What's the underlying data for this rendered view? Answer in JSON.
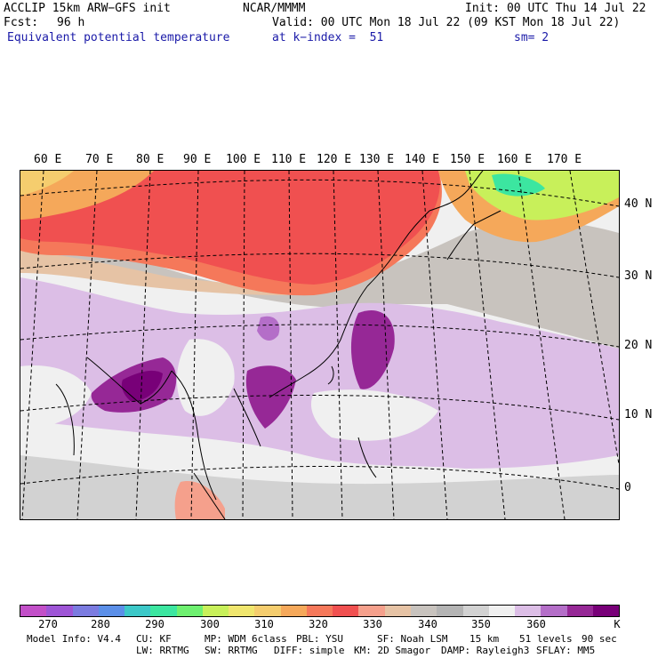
{
  "header": {
    "model": "ACCLIP 15km ARW−GFS init",
    "org": "NCAR/MMMM",
    "init": "Init: 00 UTC Thu 14 Jul 22",
    "fcst_label": "Fcst:",
    "fcst_value": "96 h",
    "valid": "Valid: 00 UTC Mon 18 Jul 22 (09 KST Mon 18 Jul 22)",
    "field": "Equivalent potential temperature",
    "level": "at k−index =  51",
    "smooth": "sm= 2"
  },
  "map": {
    "lon_labels": [
      "60 E",
      "70 E",
      "80 E",
      "90 E",
      "100 E",
      "110 E",
      "120 E",
      "130 E",
      "140 E",
      "150 E",
      "160 E",
      "170 E"
    ],
    "lat_labels": [
      "40 N",
      "30 N",
      "20 N",
      "10 N",
      "0"
    ]
  },
  "colorbar": {
    "colors": [
      "#c24fc8",
      "#9e55d6",
      "#7b7be0",
      "#5b8fe8",
      "#3cc8c8",
      "#3ce6a0",
      "#6ef070",
      "#c8f05a",
      "#f0e66e",
      "#f5cd6e",
      "#f5a85a",
      "#f5785a",
      "#f05050",
      "#f5a08c",
      "#e6c3a5",
      "#c8c3be",
      "#b4b4b4",
      "#d2d2d2",
      "#f0f0f0",
      "#dcbee6",
      "#b46ec8",
      "#962896",
      "#780078"
    ],
    "ticks": [
      "270",
      "280",
      "290",
      "300",
      "310",
      "320",
      "330",
      "340",
      "350",
      "360"
    ],
    "unit": "K"
  },
  "footer": {
    "line1": [
      "Model Info: V4.4",
      "CU: KF",
      "MP: WDM 6class",
      "PBL: YSU",
      "SF: Noah LSM",
      "15 km",
      "51 levels",
      "90 sec"
    ],
    "line2": [
      "LW: RRTMG",
      "SW: RRTMG",
      "DIFF: simple",
      "KM: 2D Smagor",
      "DAMP: Rayleigh3",
      "SFLAY: MM5"
    ]
  }
}
